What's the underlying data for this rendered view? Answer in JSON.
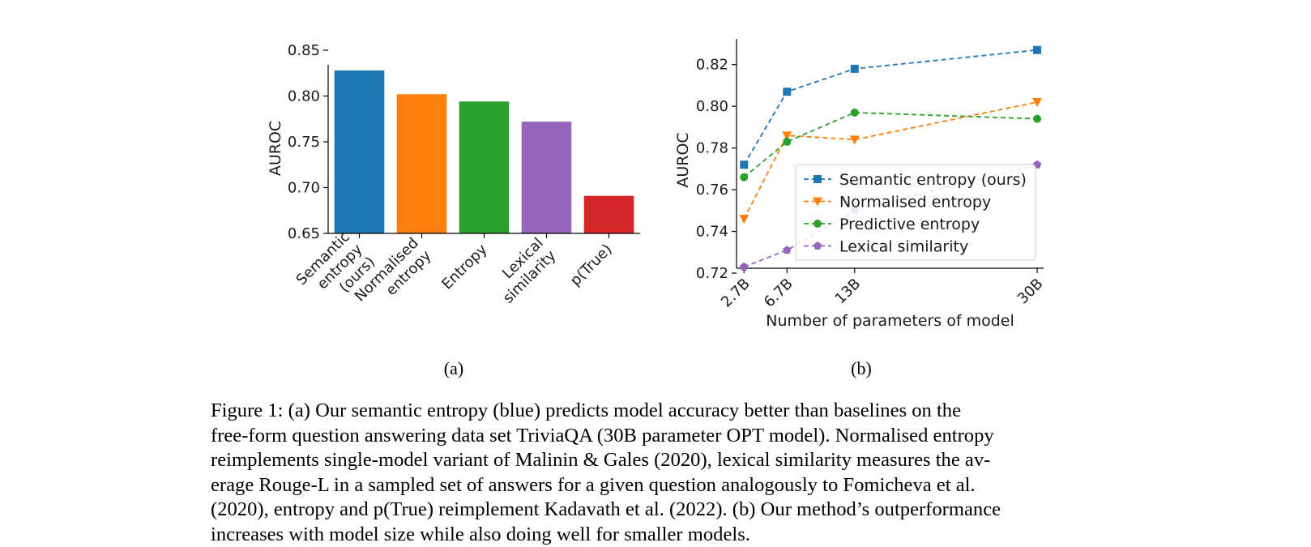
{
  "figure": {
    "panel_a_label": "(a)",
    "panel_b_label": "(b)",
    "caption_lines": [
      "Figure 1:  (a) Our semantic entropy (blue) predicts model accuracy better than baselines on the",
      "free-form question answering data set TriviaQA (30B parameter OPT model). Normalised entropy",
      "reimplements single-model variant of Malinin & Gales (2020), lexical similarity measures the av-",
      "erage Rouge-L in a sampled set of answers for a given question analogously to Fomicheva et al.",
      "(2020), entropy and p(True) reimplement Kadavath et al. (2022). (b) Our method’s outperformance",
      "increases with model size while also doing well for smaller models."
    ]
  },
  "chart_data": [
    {
      "type": "bar",
      "ylabel": "AUROC",
      "ylim": [
        0.65,
        0.85
      ],
      "yticks": [
        "0.65",
        "0.70",
        "0.75",
        "0.80",
        "0.85"
      ],
      "categories": [
        {
          "lines": [
            "Semantic",
            "entropy",
            "(ours)"
          ]
        },
        {
          "lines": [
            "Normalised",
            "entropy"
          ]
        },
        {
          "lines": [
            "Entropy"
          ]
        },
        {
          "lines": [
            "Lexical",
            "similarity"
          ]
        },
        {
          "lines": [
            "p(True)"
          ]
        }
      ],
      "values": [
        0.828,
        0.802,
        0.794,
        0.772,
        0.691
      ],
      "colors": [
        "#1f77b4",
        "#ff7f0e",
        "#2ca02c",
        "#9467bd",
        "#d62728"
      ]
    },
    {
      "type": "line",
      "xlabel": "Number of parameters of model",
      "ylabel": "AUROC",
      "x": [
        2.7,
        6.7,
        13,
        30
      ],
      "xticks": [
        "2.7B",
        "6.7B",
        "13B",
        "30B"
      ],
      "ylim": [
        0.72,
        0.83
      ],
      "yticks": [
        "0.72",
        "0.74",
        "0.76",
        "0.78",
        "0.80",
        "0.82"
      ],
      "legend_position": "lower-right",
      "series": [
        {
          "name": "Semantic entropy (ours)",
          "values": [
            0.772,
            0.807,
            0.818,
            0.827
          ],
          "color": "#1f77b4",
          "marker": "square"
        },
        {
          "name": "Normalised entropy",
          "values": [
            0.746,
            0.786,
            0.784,
            0.802
          ],
          "color": "#ff7f0e",
          "marker": "triangle-down"
        },
        {
          "name": "Predictive entropy",
          "values": [
            0.766,
            0.783,
            0.797,
            0.794
          ],
          "color": "#2ca02c",
          "marker": "circle"
        },
        {
          "name": "Lexical similarity",
          "values": [
            0.723,
            0.731,
            0.75,
            0.772
          ],
          "color": "#9467bd",
          "marker": "pentagon"
        }
      ]
    }
  ]
}
